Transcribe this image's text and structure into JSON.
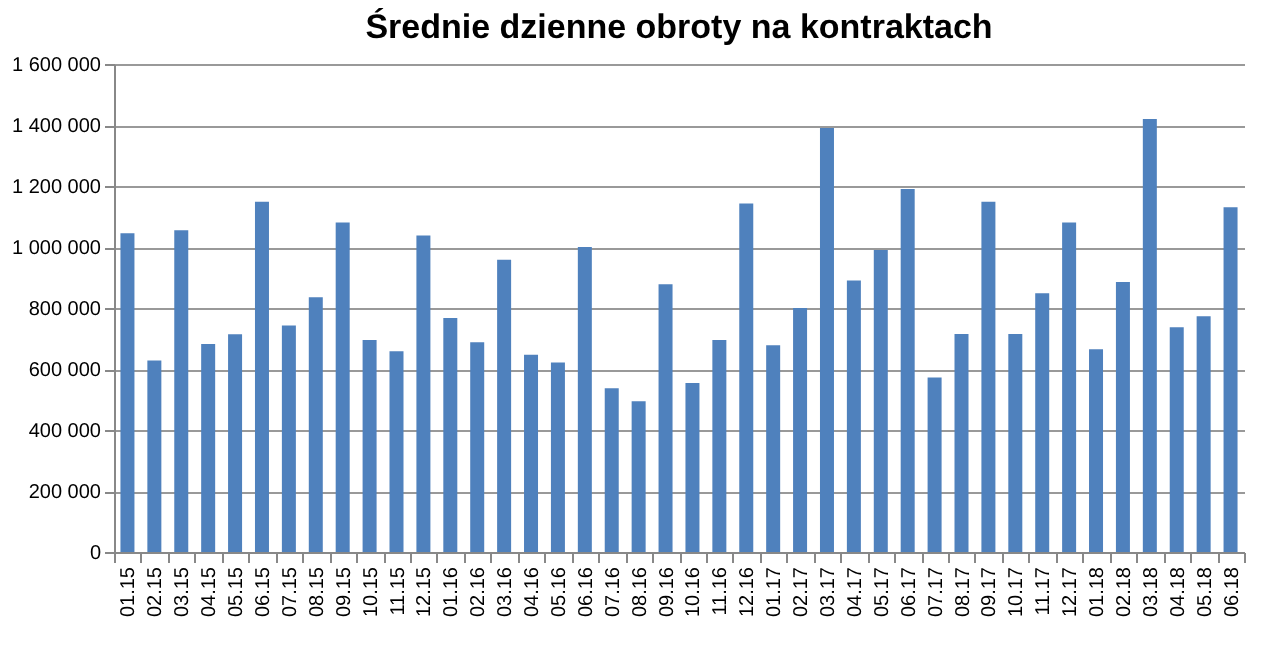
{
  "chart_data": {
    "type": "bar",
    "title": "Średnie dzienne obroty na kontraktach",
    "categories": [
      "01.15",
      "02.15",
      "03.15",
      "04.15",
      "05.15",
      "06.15",
      "07.15",
      "08.15",
      "09.15",
      "10.15",
      "11.15",
      "12.15",
      "01.16",
      "02.16",
      "03.16",
      "04.16",
      "05.16",
      "06.16",
      "07.16",
      "08.16",
      "09.16",
      "10.16",
      "11.16",
      "12.16",
      "01.17",
      "02.17",
      "03.17",
      "04.17",
      "05.17",
      "06.17",
      "07.17",
      "08.17",
      "09.17",
      "10.17",
      "11.17",
      "12.17",
      "01.18",
      "02.18",
      "03.18",
      "04.18",
      "05.18",
      "06.18"
    ],
    "values": [
      1045000,
      628000,
      1055000,
      682000,
      714000,
      1148000,
      743000,
      835000,
      1080000,
      695000,
      658000,
      1038000,
      767000,
      688000,
      958000,
      647000,
      621000,
      1000000,
      537000,
      494000,
      878000,
      554000,
      695000,
      1143000,
      678000,
      800000,
      1390000,
      890000,
      990000,
      1190000,
      572000,
      715000,
      1148000,
      715000,
      848000,
      1080000,
      665000,
      885000,
      1420000,
      737000,
      773000,
      1130000
    ],
    "color": "#4f81bd",
    "ylim": [
      0,
      1600000
    ],
    "yticks": [
      0,
      {
        "value": 200000,
        "label": "200 000"
      },
      {
        "value": 400000,
        "label": "400 000"
      },
      {
        "value": 600000,
        "label": "600 000"
      },
      {
        "value": 800000,
        "label": "800 000"
      },
      {
        "value": 1000000,
        "label": "1 000 000"
      },
      {
        "value": 1200000,
        "label": "1 200 000"
      },
      {
        "value": 1400000,
        "label": "1 400 000"
      },
      {
        "value": 1600000,
        "label": "1 600 000"
      }
    ],
    "grid": "y"
  }
}
